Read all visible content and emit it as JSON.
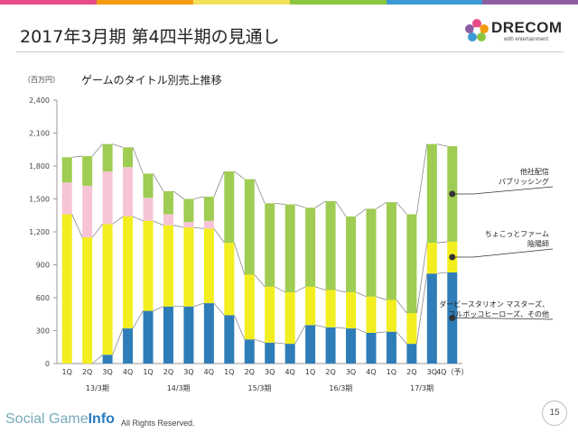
{
  "header": {
    "title": "2017年3月期 第4四半期の見通し",
    "brand_colors": [
      "#e84b8a",
      "#f39c12",
      "#f1e05a",
      "#8cc63f",
      "#3a9bd5",
      "#8e5ea2"
    ]
  },
  "logo": {
    "name": "DRECOM",
    "tagline": "with entertainment",
    "icon": "drecom-flower-logo"
  },
  "chart_data": {
    "type": "bar",
    "stacked": true,
    "title": "ゲームのタイトル別売上推移",
    "unit_label": "（百万円）",
    "categories": [
      "1Q",
      "2Q",
      "3Q",
      "4Q",
      "1Q",
      "2Q",
      "3Q",
      "4Q",
      "1Q",
      "2Q",
      "3Q",
      "4Q",
      "1Q",
      "2Q",
      "3Q",
      "4Q",
      "1Q",
      "2Q",
      "3Q",
      "4Q（予）"
    ],
    "year_groups": [
      {
        "label": "13/3期",
        "start": 0,
        "end": 3
      },
      {
        "label": "14/3期",
        "start": 4,
        "end": 7
      },
      {
        "label": "15/3期",
        "start": 8,
        "end": 11
      },
      {
        "label": "16/3期",
        "start": 12,
        "end": 15
      },
      {
        "label": "17/3期",
        "start": 16,
        "end": 19
      }
    ],
    "series": [
      {
        "name": "ダービースタリオン マスターズ、フルボッコヒーローズ、その他",
        "color": "#2f7db8",
        "values": [
          0,
          0,
          80,
          320,
          480,
          520,
          520,
          550,
          440,
          220,
          190,
          180,
          350,
          330,
          320,
          280,
          290,
          180,
          820,
          830
        ]
      },
      {
        "name": "ちょこっとファーム 陰陽師",
        "color": "#f2ee1f",
        "values": [
          1360,
          1150,
          1190,
          1020,
          820,
          740,
          720,
          680,
          660,
          590,
          510,
          470,
          350,
          340,
          330,
          330,
          290,
          280,
          280,
          280
        ]
      },
      {
        "name": "",
        "color": "#f7c4d6",
        "values": [
          290,
          470,
          480,
          450,
          210,
          100,
          50,
          70,
          0,
          0,
          0,
          0,
          0,
          0,
          0,
          0,
          0,
          0,
          0,
          0
        ]
      },
      {
        "name": "他社配信 パブリッシング",
        "color": "#9fcc52",
        "values": [
          230,
          270,
          250,
          180,
          220,
          210,
          210,
          220,
          650,
          870,
          760,
          800,
          720,
          810,
          690,
          800,
          890,
          900,
          900,
          870
        ]
      }
    ],
    "totals": [
      1880,
      1890,
      2000,
      1970,
      1730,
      1570,
      1500,
      1520,
      1750,
      1680,
      1460,
      1450,
      1420,
      1480,
      1340,
      1410,
      1470,
      1360,
      2000,
      1980
    ],
    "ylim": [
      0,
      2400
    ],
    "yticks": [
      "0",
      "300",
      "600",
      "900",
      "1,200",
      "1,500",
      "1,800",
      "2,100",
      "2,400"
    ],
    "ytick_values": [
      0,
      300,
      600,
      900,
      1200,
      1500,
      1800,
      2100,
      2400
    ],
    "grid": false,
    "legend_placement": "right",
    "legend_entries": [
      {
        "lines": [
          "他社配信",
          "パブリッシング"
        ],
        "series_index": 3
      },
      {
        "lines": [
          "ちょこっとファーム",
          "陰陽師"
        ],
        "series_index": 1
      },
      {
        "lines": [
          "ダービースタリオン マスターズ、",
          "フルボッコヒーローズ、その他"
        ],
        "series_index": 0
      }
    ]
  },
  "footer": {
    "logo_text": "Social Game",
    "logo_bold": "Info",
    "copyright": "All Rights Reserved.",
    "page_number": "15"
  }
}
